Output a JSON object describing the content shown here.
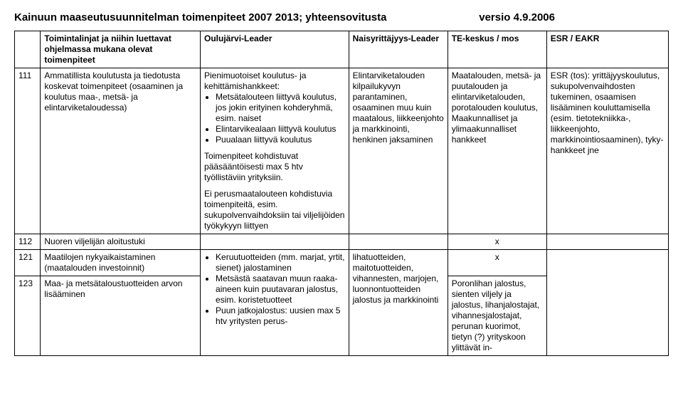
{
  "header": {
    "title": "Kainuun maaseutusuunnitelman toimenpiteet 2007 2013; yhteensovitusta",
    "versio": "versio  4.9.2006"
  },
  "columns": {
    "c1": "",
    "c2": "Toimintalinjat ja niihin luettavat ohjelmassa  mukana olevat toimenpiteet",
    "c3": "Oulujärvi-Leader",
    "c4": "Naisyrittäjyys-Leader",
    "c5": "TE-keskus / mos",
    "c6": "ESR / EAKR"
  },
  "rows": {
    "r111": {
      "num": "111",
      "toim": "Ammatillista koulutusta ja tiedotusta koskevat toimenpiteet\n(osaaminen ja koulutus maa-, metsä- ja elintarviketaloudessa)",
      "oulu_intro": "Pienimuotoiset koulutus- ja kehittämishankkeet:",
      "oulu_b1": "Metsätalouteen liittyvä koulutus, jos jokin erityinen kohderyhmä, esim. naiset",
      "oulu_b2": "Elintarvikealaan liittyvä koulutus",
      "oulu_b3": "Puualaan liittyvä koulutus",
      "oulu_p1": "Toimenpiteet kohdistuvat pääsääntöisesti max 5 htv työllistäviin yrityksiin.",
      "oulu_p2": "Ei perusmaatalouteen kohdistuvia toimenpiteitä, esim. sukupolvenvaihdoksiin tai viljelijöiden työkykyyn liittyen",
      "nais": "Elintarviketalouden kilpailukyvyn parantaminen, osaaminen muu kuin maatalous, liikkeenjohto ja markkinointi, henkinen jaksaminen",
      "te": "Maatalouden, metsä- ja puutalouden ja elintarviketalouden, porotalouden koulutus,\nMaakunnalliset ja ylimaakunnalliset hankkeet",
      "esr": "ESR (tos): yrittäjyyskoulutus, sukupolvenvaihdosten tukeminen, osaamisen lisääminen kouluttamisella (esim. tietotekniikka-, liikkeenjohto, markkinointiosaaminen), tyky-hankkeet jne"
    },
    "r112": {
      "num": "112",
      "toim": "Nuoren viljelijän aloitustuki",
      "te": "x"
    },
    "r121": {
      "num": "121",
      "toim": "Maatilojen nykyaikaistaminen (maatalouden investoinnit)",
      "te": "x"
    },
    "r123": {
      "num": "123",
      "toim": "Maa- ja metsätaloustuotteiden arvon lisääminen",
      "oulu_b1": "Keruutuotteiden (mm. marjat, yrtit, sienet) jalostaminen",
      "oulu_b2": "Metsästä saatavan muun raaka-aineen kuin puutavaran jalostus, esim. koristetuotteet",
      "oulu_b3": "Puun jatkojalostus: uusien max 5 htv yritysten perus-",
      "nais": "lihatuotteiden, maitotuotteiden, vihannesten, marjojen, luonnontuotteiden jalostus ja markkinointi",
      "te": "Poronlihan jalostus, sienten viljely ja jalostus, lihanjalostajat, vihannesjalostajat, perunan kuorimot, tietyn (?) yrityskoon ylittävät in-"
    }
  }
}
